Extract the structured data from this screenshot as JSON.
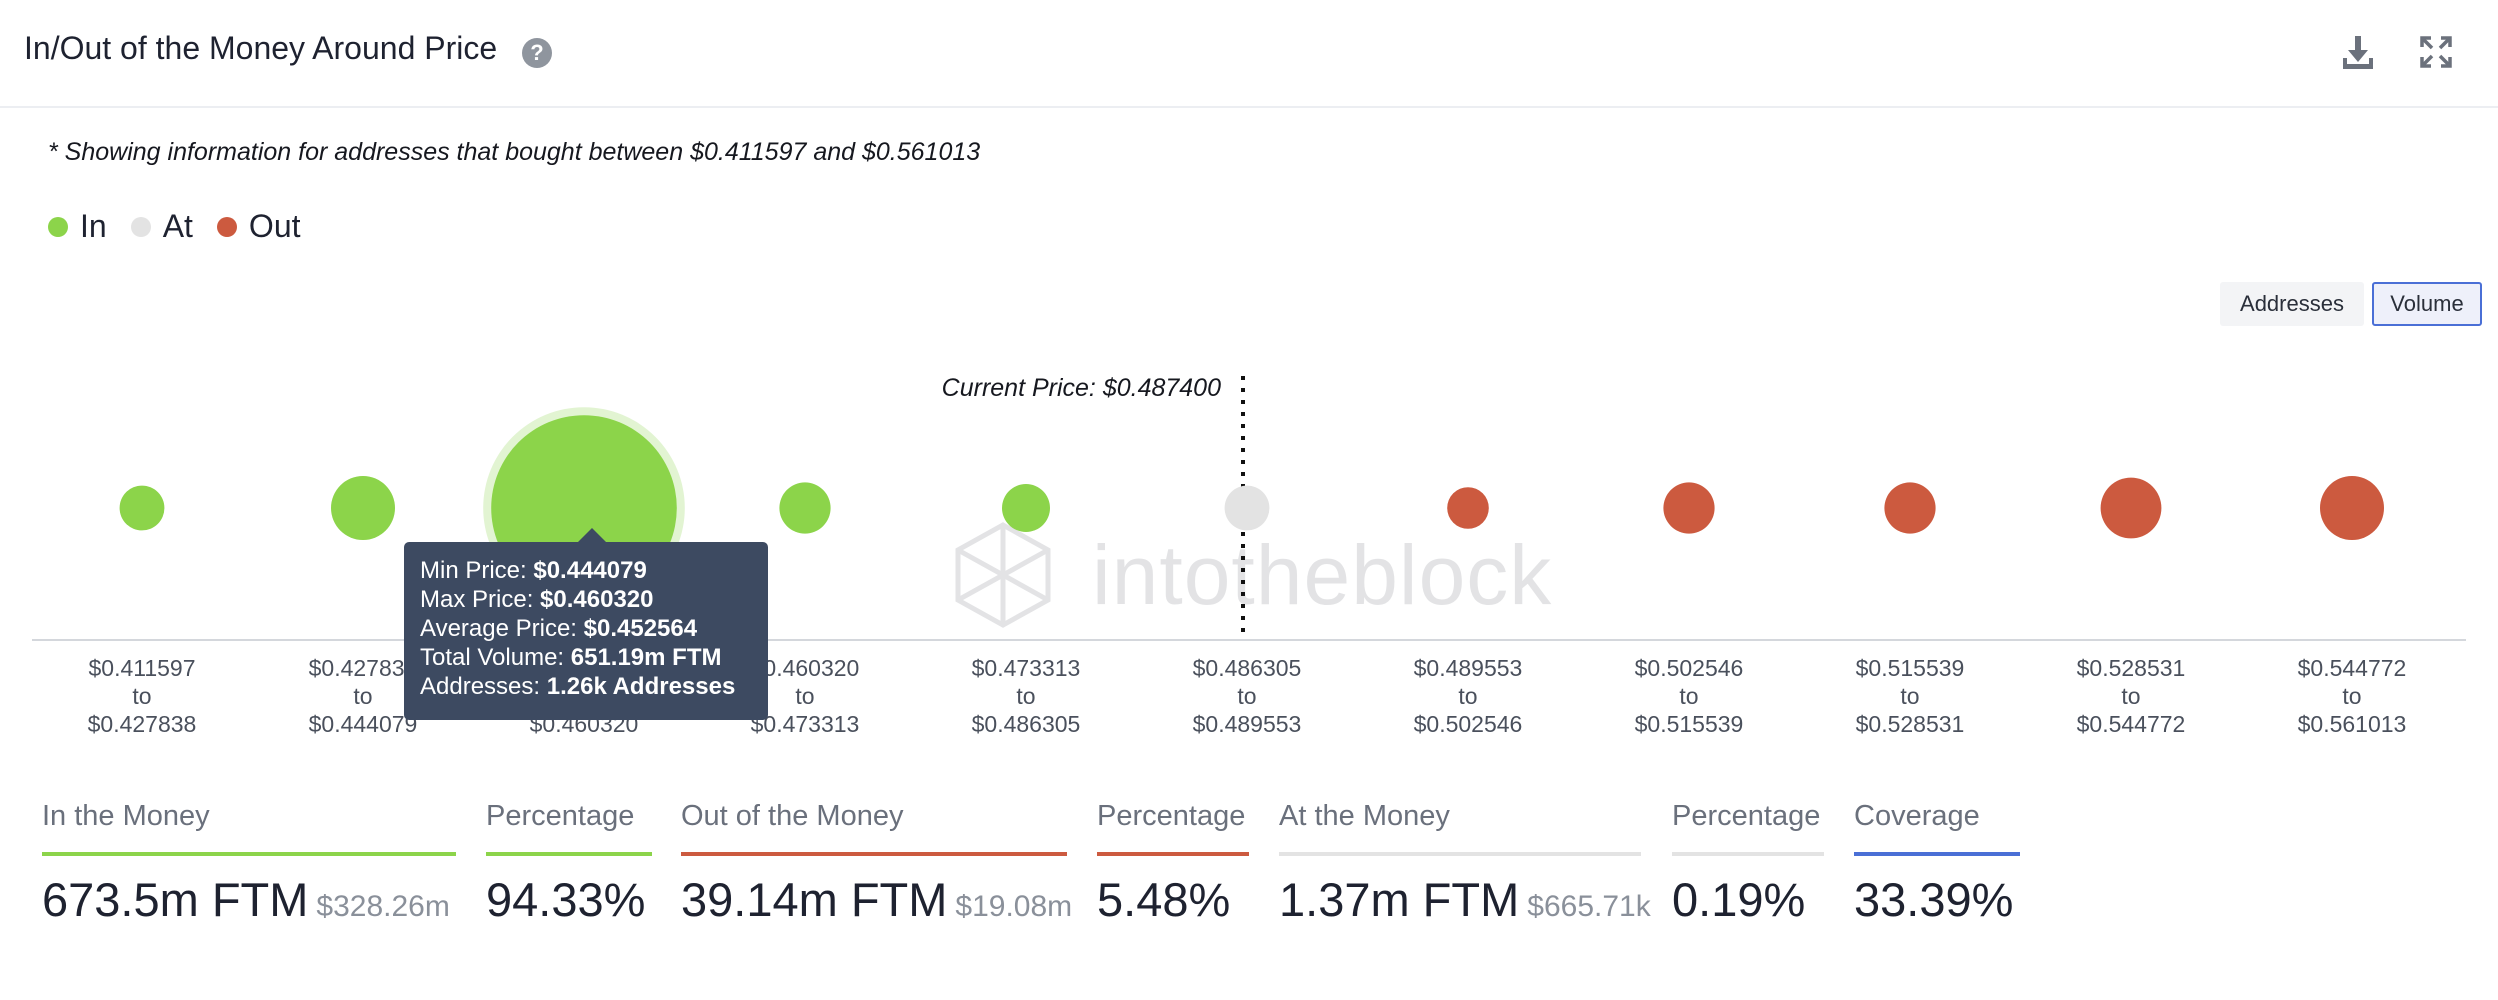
{
  "header": {
    "title": "In/Out of the Money Around Price",
    "help_icon": "help-icon",
    "download_icon": "download-icon",
    "expand_icon": "expand-icon"
  },
  "note": "* Showing information for addresses that bought between $0.411597 and $0.561013",
  "legend": [
    {
      "label": "In",
      "color": "#8cd44a"
    },
    {
      "label": "At",
      "color": "#e3e3e3"
    },
    {
      "label": "Out",
      "color": "#cc5a3f"
    }
  ],
  "toggle": {
    "addresses": "Addresses",
    "volume": "Volume",
    "selected": "Volume"
  },
  "watermark": "intotheblock",
  "tooltip": {
    "min_label": "Min Price: ",
    "min_value": "$0.444079",
    "max_label": "Max Price: ",
    "max_value": "$0.460320",
    "avg_label": "Average Price: ",
    "avg_value": "$0.452564",
    "vol_label": "Total Volume: ",
    "vol_value": "651.19m FTM",
    "addr_label": "Addresses: ",
    "addr_value": "1.26k Addresses"
  },
  "chart_data": {
    "type": "scatter",
    "subtype": "bubble",
    "current_price_label": "Current Price: $0.487400",
    "current_price": 0.4874,
    "categories": [
      {
        "from": "$0.411597",
        "to": "$0.427838",
        "status": "In",
        "size": 14
      },
      {
        "from": "$0.427838",
        "to": "$0.444079",
        "status": "In",
        "size": 20
      },
      {
        "from": "$0.444079",
        "to": "$0.460320",
        "status": "In",
        "size": 58,
        "volume": "651.19m FTM",
        "hovered": true
      },
      {
        "from": "$0.460320",
        "to": "$0.473313",
        "status": "In",
        "size": 16
      },
      {
        "from": "$0.473313",
        "to": "$0.486305",
        "status": "In",
        "size": 15
      },
      {
        "from": "$0.486305",
        "to": "$0.489553",
        "status": "At",
        "size": 14
      },
      {
        "from": "$0.489553",
        "to": "$0.502546",
        "status": "Out",
        "size": 13
      },
      {
        "from": "$0.502546",
        "to": "$0.515539",
        "status": "Out",
        "size": 16
      },
      {
        "from": "$0.515539",
        "to": "$0.528531",
        "status": "Out",
        "size": 16
      },
      {
        "from": "$0.528531",
        "to": "$0.544772",
        "status": "Out",
        "size": 19
      },
      {
        "from": "$0.544772",
        "to": "$0.561013",
        "status": "Out",
        "size": 20
      }
    ],
    "to_word": "to",
    "colors": {
      "In": "#8cd44a",
      "At": "#e3e3e3",
      "Out": "#cc5a3f"
    }
  },
  "stats": [
    {
      "label": "In the Money",
      "value": "673.5m FTM",
      "sub": "$328.26m",
      "color": "#8cd44a"
    },
    {
      "label": "Percentage",
      "value": "94.33%",
      "sub": "",
      "color": "#8cd44a"
    },
    {
      "label": "Out of the Money",
      "value": "39.14m FTM",
      "sub": "$19.08m",
      "color": "#cc5a3f"
    },
    {
      "label": "Percentage",
      "value": "5.48%",
      "sub": "",
      "color": "#cc5a3f"
    },
    {
      "label": "At the Money",
      "value": "1.37m FTM",
      "sub": "$665.71k",
      "color": "#e3e3e3"
    },
    {
      "label": "Percentage",
      "value": "0.19%",
      "sub": "",
      "color": "#e3e3e3"
    },
    {
      "label": "Coverage",
      "value": "33.39%",
      "sub": "",
      "color": "#4a6fd6"
    }
  ]
}
